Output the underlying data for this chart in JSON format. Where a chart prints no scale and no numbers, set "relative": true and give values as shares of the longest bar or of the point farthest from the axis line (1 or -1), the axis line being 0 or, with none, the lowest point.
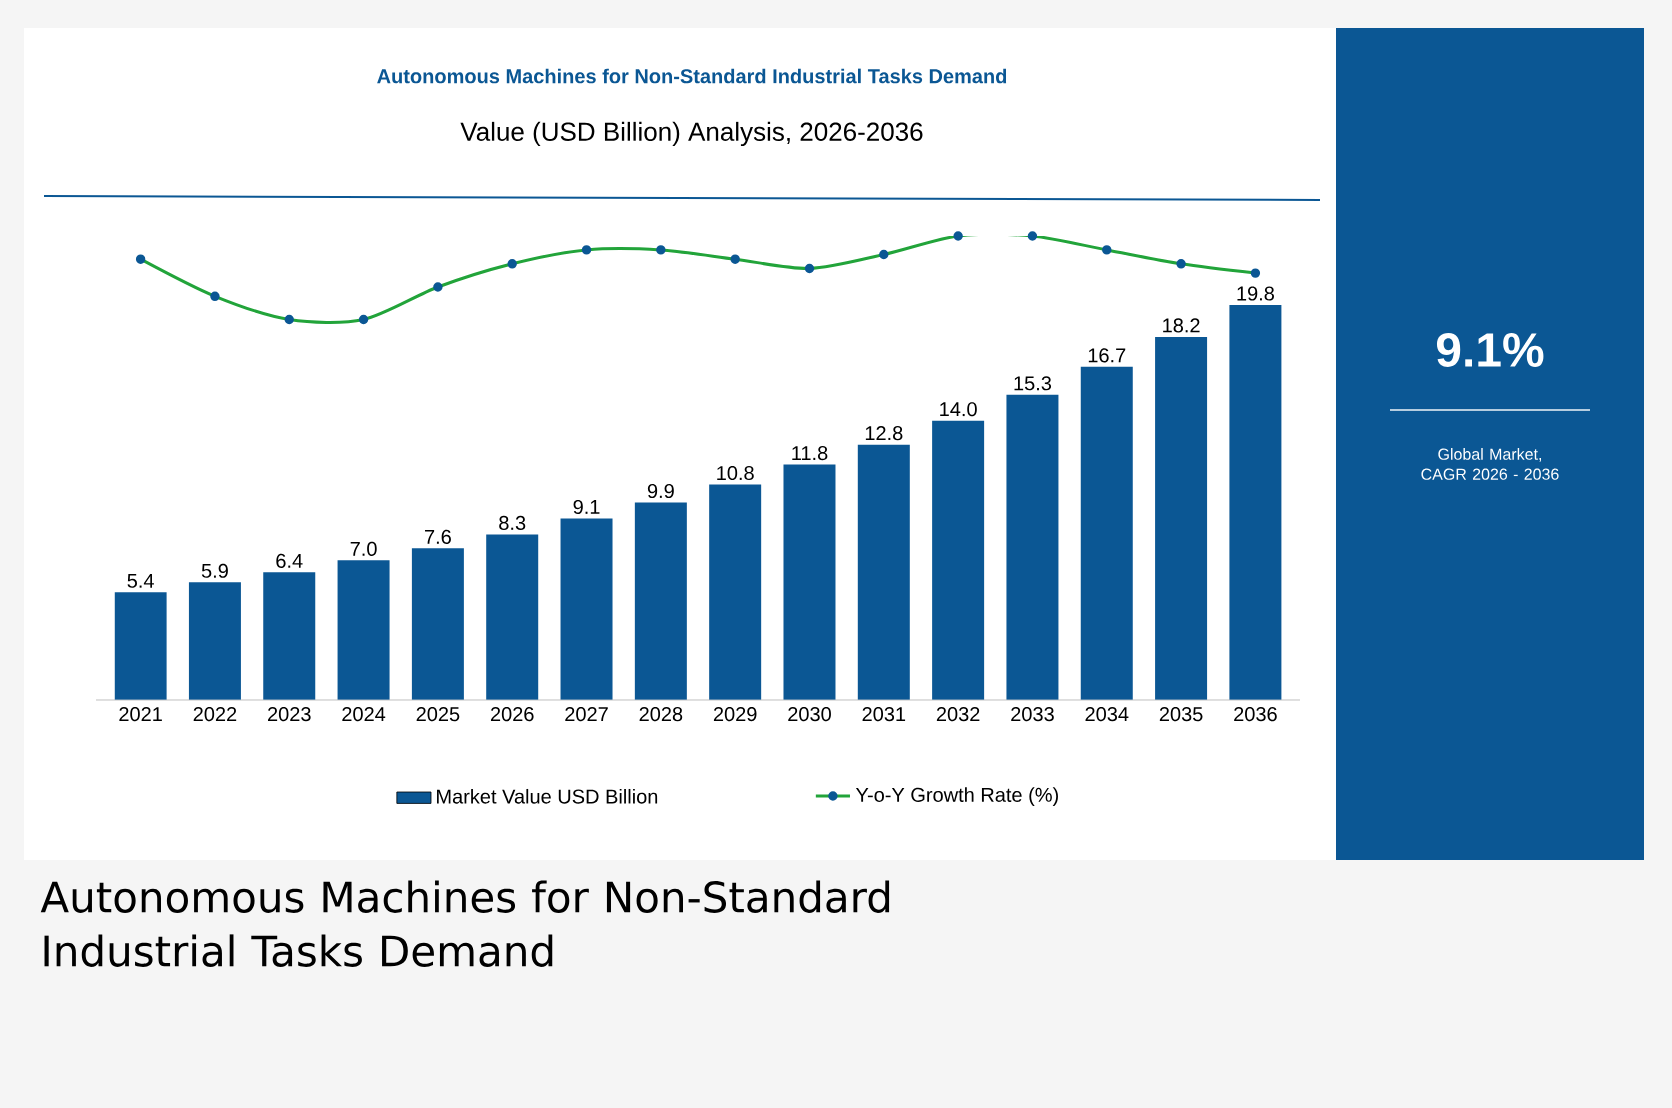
{
  "chart_data": [
    {
      "type": "bar",
      "title": "Autonomous Machines for Non-Standard Industrial Tasks Demand",
      "subtitle": "Value (USD Billion) Analysis, 2026-2036",
      "categories": [
        "2021",
        "2022",
        "2023",
        "2024",
        "2025",
        "2026",
        "2027",
        "2028",
        "2029",
        "2030",
        "2031",
        "2032",
        "2033",
        "2034",
        "2035",
        "2036"
      ],
      "series": [
        {
          "name": "Market Value USD Billion",
          "color": "#0b5794",
          "values": [
            5.4,
            5.9,
            6.4,
            7.0,
            7.6,
            8.3,
            9.1,
            9.9,
            10.8,
            11.8,
            12.8,
            14.0,
            15.3,
            16.7,
            18.2,
            19.8
          ],
          "value_labels": [
            "5.4",
            "5.9",
            "6.4",
            "7.0",
            "7.6",
            "8.3",
            "9.1",
            "9.9",
            "10.8",
            "11.8",
            "12.8",
            "14.0",
            "15.3",
            "16.7",
            "18.2",
            "19.8"
          ]
        }
      ],
      "legend": "bottom",
      "annotations": [
        "9.1%",
        "Global Market, CAGR 2026 - 2036",
        "Autonomous Machines for Non-Standard Industrial Tasks Demand"
      ]
    },
    {
      "type": "line",
      "relative": true,
      "marker": "circle",
      "legend": "bottom",
      "categories": [
        null,
        null,
        null,
        null,
        null,
        null,
        null,
        null,
        null,
        null,
        null,
        null,
        null,
        null,
        null,
        null
      ],
      "series": [
        {
          "name": "Y-o-Y Growth Rate (%)",
          "color": "#22a43a",
          "values": [
            0.95,
            0.87,
            0.82,
            0.82,
            0.89,
            0.94,
            0.97,
            0.97,
            0.95,
            0.93,
            0.96,
            1.0,
            1.0,
            0.97,
            0.94,
            0.92
          ]
        }
      ]
    }
  ]
}
